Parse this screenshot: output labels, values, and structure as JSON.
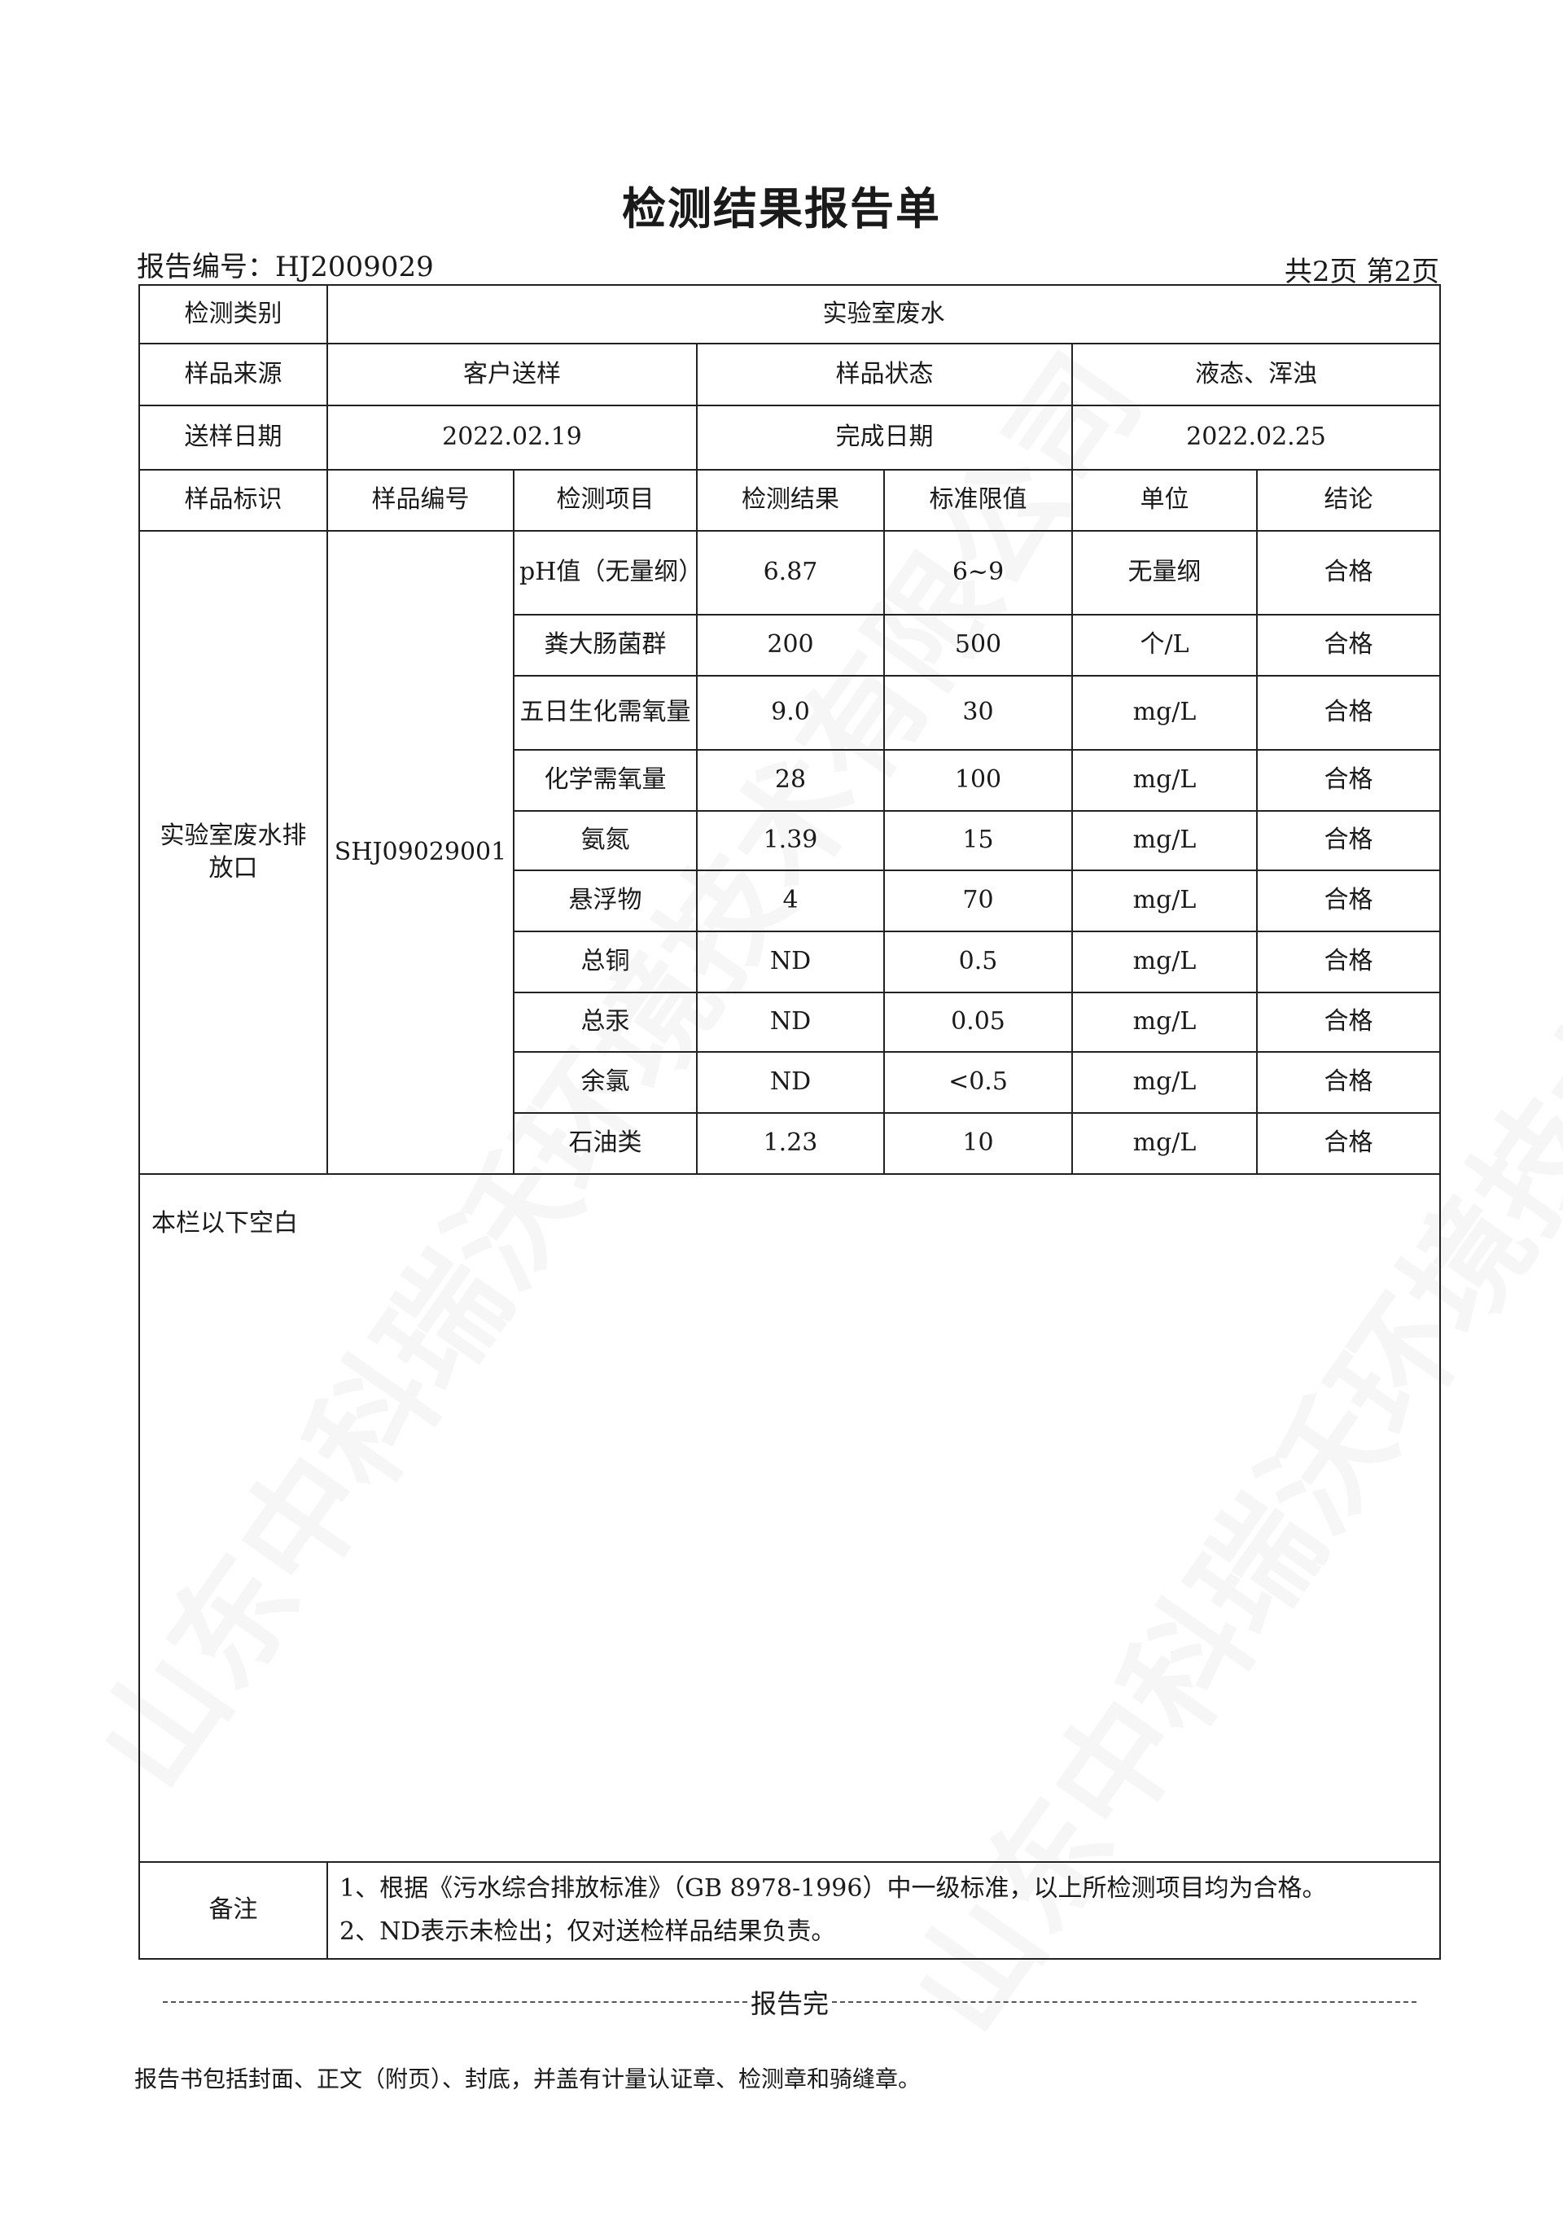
{
  "title": "检测结果报告单",
  "report_number": "报告编号：HJ2009029",
  "pages": "共2页 第2页",
  "info": {
    "category_label": "检测类别",
    "category_value": "实验室废水",
    "source_label": "样品来源",
    "source_value": "客户送样",
    "state_label": "样品状态",
    "state_value": "液态、浑浊",
    "send_date_label": "送样日期",
    "send_date_value": "2022.02.19",
    "finish_date_label": "完成日期",
    "finish_date_value": "2022.02.25"
  },
  "columns": [
    "样品标识",
    "样品编号",
    "检测项目",
    "检测结果",
    "标准限值",
    "单位",
    "结论"
  ],
  "sample": {
    "id_label": "实验室废水排放口",
    "number": "SHJ09029001"
  },
  "rows": [
    {
      "item": "pH值（无量纲）",
      "result": "6.87",
      "limit": "6~9",
      "unit": "无量纲",
      "conclusion": "合格"
    },
    {
      "item": "粪大肠菌群",
      "result": "200",
      "limit": "500",
      "unit": "个/L",
      "conclusion": "合格"
    },
    {
      "item": "五日生化需氧量",
      "result": "9.0",
      "limit": "30",
      "unit": "mg/L",
      "conclusion": "合格"
    },
    {
      "item": "化学需氧量",
      "result": "28",
      "limit": "100",
      "unit": "mg/L",
      "conclusion": "合格"
    },
    {
      "item": "氨氮",
      "result": "1.39",
      "limit": "15",
      "unit": "mg/L",
      "conclusion": "合格"
    },
    {
      "item": "悬浮物",
      "result": "4",
      "limit": "70",
      "unit": "mg/L",
      "conclusion": "合格"
    },
    {
      "item": "总铜",
      "result": "ND",
      "limit": "0.5",
      "unit": "mg/L",
      "conclusion": "合格"
    },
    {
      "item": "总汞",
      "result": "ND",
      "limit": "0.05",
      "unit": "mg/L",
      "conclusion": "合格"
    },
    {
      "item": "余氯",
      "result": "ND",
      "limit": "<0.5",
      "unit": "mg/L",
      "conclusion": "合格"
    },
    {
      "item": "石油类",
      "result": "1.23",
      "limit": "10",
      "unit": "mg/L",
      "conclusion": "合格"
    }
  ],
  "blank_note": "本栏以下空白",
  "remarks": {
    "label": "备注",
    "line1": "1、根据《污水综合排放标准》（GB 8978-1996）中一级标准，以上所检测项目均为合格。",
    "line2": "2、ND表示未检出；仅对送检样品结果负责。"
  },
  "end_text": "报告完",
  "footnote": "报告书包括封面、正文（附页）、封底，并盖有计量认证章、检测章和骑缝章。",
  "watermark": "山东中科瑞沃环境技术有限公司"
}
